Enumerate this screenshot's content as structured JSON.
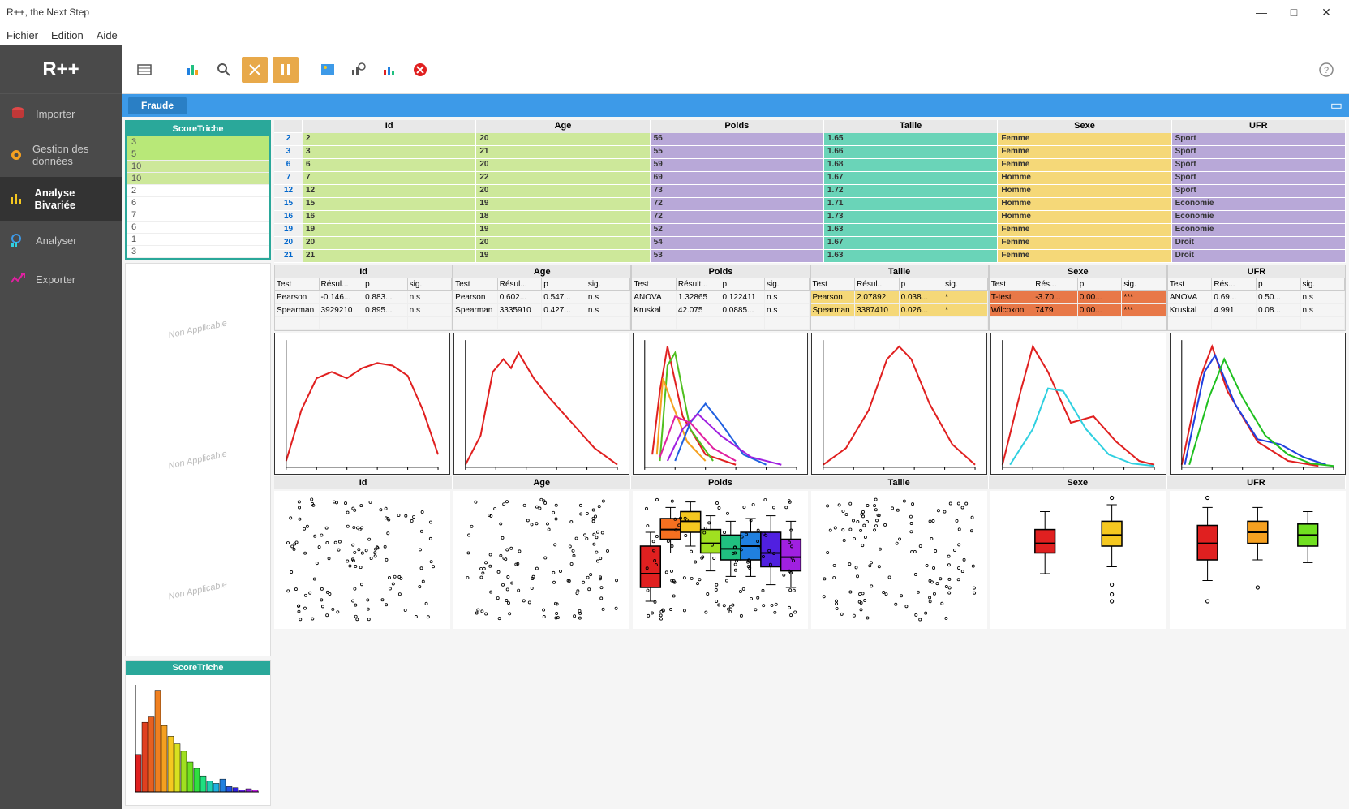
{
  "title": "R++, the Next Step",
  "menu": {
    "file": "Fichier",
    "edit": "Edition",
    "help": "Aide"
  },
  "logo": "R++",
  "nav": {
    "import": "Importer",
    "data": "Gestion des données",
    "bivar": "Analyse Bivariée",
    "analyze": "Analyser",
    "export": "Exporter"
  },
  "tab": "Fraude",
  "scoreHeader": "ScoreTriche",
  "scoreValues": [
    "3",
    "5",
    "10",
    "10",
    "2",
    "6",
    "7",
    "6",
    "1",
    "3"
  ],
  "naText": "Non Applicable",
  "columns": [
    "Id",
    "Age",
    "Poids",
    "Taille",
    "Sexe",
    "UFR"
  ],
  "colColors": [
    "#cde89a",
    "#cde89a",
    "#b8a8d8",
    "#6ad4b8",
    "#f5d878",
    "#b8a8d8"
  ],
  "rowIds": [
    "2",
    "3",
    "6",
    "7",
    "12",
    "15",
    "16",
    "19",
    "20",
    "21"
  ],
  "rows": [
    [
      "2",
      "20",
      "56",
      "1.65",
      "Femme",
      "Sport"
    ],
    [
      "3",
      "21",
      "55",
      "1.66",
      "Femme",
      "Sport"
    ],
    [
      "6",
      "20",
      "59",
      "1.68",
      "Femme",
      "Sport"
    ],
    [
      "7",
      "22",
      "69",
      "1.67",
      "Homme",
      "Sport"
    ],
    [
      "12",
      "20",
      "73",
      "1.72",
      "Homme",
      "Sport"
    ],
    [
      "15",
      "19",
      "72",
      "1.71",
      "Homme",
      "Economie"
    ],
    [
      "16",
      "18",
      "72",
      "1.73",
      "Homme",
      "Economie"
    ],
    [
      "19",
      "19",
      "52",
      "1.63",
      "Femme",
      "Economie"
    ],
    [
      "20",
      "20",
      "54",
      "1.67",
      "Femme",
      "Droit"
    ],
    [
      "21",
      "19",
      "53",
      "1.63",
      "Femme",
      "Droit"
    ]
  ],
  "statCols": [
    {
      "name": "Id",
      "sub": [
        "Test",
        "Résul...",
        "p",
        "sig."
      ],
      "rows": [
        {
          "cells": [
            "Pearson",
            "-0.146...",
            "0.883...",
            "n.s"
          ],
          "bg": null
        },
        {
          "cells": [
            "Spearman",
            "3929210",
            "0.895...",
            "n.s"
          ],
          "bg": null
        }
      ]
    },
    {
      "name": "Age",
      "sub": [
        "Test",
        "Résul...",
        "p",
        "sig."
      ],
      "rows": [
        {
          "cells": [
            "Pearson",
            "0.602...",
            "0.547...",
            "n.s"
          ],
          "bg": null
        },
        {
          "cells": [
            "Spearman",
            "3335910",
            "0.427...",
            "n.s"
          ],
          "bg": null
        }
      ]
    },
    {
      "name": "Poids",
      "sub": [
        "Test",
        "Résult...",
        "p",
        "sig."
      ],
      "rows": [
        {
          "cells": [
            "ANOVA",
            "1.32865",
            "0.122411",
            "n.s"
          ],
          "bg": null
        },
        {
          "cells": [
            "Kruskal",
            "42.075",
            "0.0885...",
            "n.s"
          ],
          "bg": null
        }
      ]
    },
    {
      "name": "Taille",
      "sub": [
        "Test",
        "Résul...",
        "p",
        "sig."
      ],
      "rows": [
        {
          "cells": [
            "Pearson",
            "2.07892",
            "0.038...",
            "*"
          ],
          "bg": "#f5d878"
        },
        {
          "cells": [
            "Spearman",
            "3387410",
            "0.026...",
            "*"
          ],
          "bg": "#f5d878"
        }
      ]
    },
    {
      "name": "Sexe",
      "sub": [
        "Test",
        "Rés...",
        "p",
        "sig."
      ],
      "rows": [
        {
          "cells": [
            "T-test",
            "-3.70...",
            "0.00...",
            "***"
          ],
          "bg": "#e87848"
        },
        {
          "cells": [
            "Wilcoxon",
            "7479",
            "0.00...",
            "***"
          ],
          "bg": "#e87848"
        }
      ]
    },
    {
      "name": "UFR",
      "sub": [
        "Test",
        "Rés...",
        "p",
        "sig."
      ],
      "rows": [
        {
          "cells": [
            "ANOVA",
            "0.69...",
            "0.50...",
            "n.s"
          ],
          "bg": null
        },
        {
          "cells": [
            "Kruskal",
            "4.991",
            "0.08...",
            "n.s"
          ],
          "bg": null
        }
      ]
    }
  ],
  "density": {
    "id": {
      "curves": [
        {
          "color": "#e02020",
          "points": [
            [
              0,
              0.05
            ],
            [
              0.1,
              0.45
            ],
            [
              0.2,
              0.7
            ],
            [
              0.3,
              0.75
            ],
            [
              0.4,
              0.7
            ],
            [
              0.5,
              0.78
            ],
            [
              0.6,
              0.82
            ],
            [
              0.7,
              0.8
            ],
            [
              0.8,
              0.72
            ],
            [
              0.9,
              0.45
            ],
            [
              1,
              0.1
            ]
          ]
        }
      ]
    },
    "age": {
      "curves": [
        {
          "color": "#e02020",
          "points": [
            [
              0,
              0.02
            ],
            [
              0.1,
              0.25
            ],
            [
              0.18,
              0.75
            ],
            [
              0.25,
              0.85
            ],
            [
              0.3,
              0.78
            ],
            [
              0.35,
              0.9
            ],
            [
              0.45,
              0.7
            ],
            [
              0.55,
              0.55
            ],
            [
              0.7,
              0.35
            ],
            [
              0.85,
              0.15
            ],
            [
              1,
              0.02
            ]
          ]
        }
      ]
    },
    "poids": {
      "curves": [
        {
          "color": "#e02020",
          "points": [
            [
              0.05,
              0.1
            ],
            [
              0.1,
              0.6
            ],
            [
              0.15,
              0.95
            ],
            [
              0.25,
              0.4
            ],
            [
              0.4,
              0.1
            ],
            [
              0.6,
              0.02
            ]
          ]
        },
        {
          "color": "#50c020",
          "points": [
            [
              0.1,
              0.05
            ],
            [
              0.15,
              0.8
            ],
            [
              0.2,
              0.9
            ],
            [
              0.3,
              0.3
            ],
            [
              0.45,
              0.05
            ]
          ]
        },
        {
          "color": "#f5a020",
          "points": [
            [
              0.08,
              0.1
            ],
            [
              0.12,
              0.7
            ],
            [
              0.18,
              0.5
            ],
            [
              0.28,
              0.2
            ],
            [
              0.4,
              0.05
            ]
          ]
        },
        {
          "color": "#2060e0",
          "points": [
            [
              0.2,
              0.05
            ],
            [
              0.3,
              0.35
            ],
            [
              0.4,
              0.5
            ],
            [
              0.5,
              0.35
            ],
            [
              0.65,
              0.1
            ],
            [
              0.8,
              0.02
            ]
          ]
        },
        {
          "color": "#a020e0",
          "points": [
            [
              0.15,
              0.05
            ],
            [
              0.25,
              0.3
            ],
            [
              0.35,
              0.42
            ],
            [
              0.5,
              0.25
            ],
            [
              0.7,
              0.08
            ],
            [
              0.9,
              0.02
            ]
          ]
        },
        {
          "color": "#e020a0",
          "points": [
            [
              0.1,
              0.08
            ],
            [
              0.2,
              0.4
            ],
            [
              0.3,
              0.35
            ],
            [
              0.45,
              0.15
            ],
            [
              0.6,
              0.05
            ]
          ]
        }
      ]
    },
    "taille": {
      "curves": [
        {
          "color": "#e02020",
          "points": [
            [
              0,
              0.02
            ],
            [
              0.15,
              0.15
            ],
            [
              0.3,
              0.45
            ],
            [
              0.42,
              0.85
            ],
            [
              0.5,
              0.95
            ],
            [
              0.58,
              0.85
            ],
            [
              0.7,
              0.5
            ],
            [
              0.85,
              0.18
            ],
            [
              1,
              0.02
            ]
          ]
        }
      ]
    },
    "sexe": {
      "curves": [
        {
          "color": "#e02020",
          "points": [
            [
              0,
              0.02
            ],
            [
              0.12,
              0.6
            ],
            [
              0.2,
              0.95
            ],
            [
              0.3,
              0.75
            ],
            [
              0.45,
              0.35
            ],
            [
              0.6,
              0.4
            ],
            [
              0.75,
              0.2
            ],
            [
              0.9,
              0.05
            ],
            [
              1,
              0.02
            ]
          ]
        },
        {
          "color": "#30d0e0",
          "points": [
            [
              0.05,
              0.02
            ],
            [
              0.2,
              0.3
            ],
            [
              0.3,
              0.62
            ],
            [
              0.4,
              0.6
            ],
            [
              0.55,
              0.3
            ],
            [
              0.7,
              0.1
            ],
            [
              0.85,
              0.03
            ],
            [
              1,
              0.01
            ]
          ]
        }
      ]
    },
    "ufr": {
      "curves": [
        {
          "color": "#e02020",
          "points": [
            [
              0,
              0.02
            ],
            [
              0.12,
              0.7
            ],
            [
              0.2,
              0.95
            ],
            [
              0.3,
              0.6
            ],
            [
              0.5,
              0.2
            ],
            [
              0.7,
              0.05
            ],
            [
              0.9,
              0.01
            ]
          ]
        },
        {
          "color": "#2040e0",
          "points": [
            [
              0.02,
              0.02
            ],
            [
              0.15,
              0.75
            ],
            [
              0.22,
              0.88
            ],
            [
              0.35,
              0.5
            ],
            [
              0.5,
              0.22
            ],
            [
              0.65,
              0.18
            ],
            [
              0.8,
              0.08
            ],
            [
              0.95,
              0.02
            ]
          ]
        },
        {
          "color": "#20c020",
          "points": [
            [
              0.05,
              0.02
            ],
            [
              0.18,
              0.55
            ],
            [
              0.28,
              0.85
            ],
            [
              0.4,
              0.55
            ],
            [
              0.55,
              0.25
            ],
            [
              0.7,
              0.1
            ],
            [
              0.85,
              0.03
            ],
            [
              1,
              0.01
            ]
          ]
        }
      ]
    }
  },
  "boxplots": {
    "sexe": [
      {
        "color": "#e02020",
        "x": 0.3,
        "q1": 0.55,
        "med": 0.62,
        "q3": 0.72,
        "wlow": 0.4,
        "whigh": 0.85,
        "out": []
      },
      {
        "color": "#f5c820",
        "x": 0.7,
        "q1": 0.6,
        "med": 0.68,
        "q3": 0.78,
        "wlow": 0.45,
        "whigh": 0.9,
        "out": [
          0.2,
          0.25,
          0.32,
          0.95
        ]
      }
    ],
    "ufr": [
      {
        "color": "#e02020",
        "x": 0.2,
        "q1": 0.5,
        "med": 0.62,
        "q3": 0.75,
        "wlow": 0.35,
        "whigh": 0.88,
        "out": [
          0.2,
          0.95
        ]
      },
      {
        "color": "#f5a020",
        "x": 0.5,
        "q1": 0.62,
        "med": 0.7,
        "q3": 0.78,
        "wlow": 0.5,
        "whigh": 0.88,
        "out": [
          0.3
        ]
      },
      {
        "color": "#70e020",
        "x": 0.8,
        "q1": 0.6,
        "med": 0.68,
        "q3": 0.76,
        "wlow": 0.48,
        "whigh": 0.85,
        "out": []
      }
    ],
    "poids": [
      {
        "color": "#e02020",
        "x": 0.08,
        "q1": 0.3,
        "med": 0.4,
        "q3": 0.6,
        "wlow": 0.2,
        "whigh": 0.7
      },
      {
        "color": "#f57020",
        "x": 0.2,
        "q1": 0.65,
        "med": 0.72,
        "q3": 0.8,
        "wlow": 0.55,
        "whigh": 0.88
      },
      {
        "color": "#f5c820",
        "x": 0.32,
        "q1": 0.7,
        "med": 0.78,
        "q3": 0.85,
        "wlow": 0.6,
        "whigh": 0.92
      },
      {
        "color": "#a0e020",
        "x": 0.44,
        "q1": 0.55,
        "med": 0.62,
        "q3": 0.72,
        "wlow": 0.42,
        "whigh": 0.82
      },
      {
        "color": "#20c080",
        "x": 0.56,
        "q1": 0.5,
        "med": 0.58,
        "q3": 0.68,
        "wlow": 0.38,
        "whigh": 0.78
      },
      {
        "color": "#2080e0",
        "x": 0.68,
        "q1": 0.5,
        "med": 0.6,
        "q3": 0.7,
        "wlow": 0.38,
        "whigh": 0.8
      },
      {
        "color": "#5020e0",
        "x": 0.8,
        "q1": 0.45,
        "med": 0.55,
        "q3": 0.7,
        "wlow": 0.32,
        "whigh": 0.82
      },
      {
        "color": "#a020e0",
        "x": 0.92,
        "q1": 0.42,
        "med": 0.52,
        "q3": 0.65,
        "wlow": 0.3,
        "whigh": 0.78
      }
    ]
  },
  "histogram": {
    "bars": [
      {
        "h": 0.35,
        "c": "#e02020"
      },
      {
        "h": 0.65,
        "c": "#e04020"
      },
      {
        "h": 0.7,
        "c": "#e86020"
      },
      {
        "h": 0.95,
        "c": "#f08020"
      },
      {
        "h": 0.62,
        "c": "#f5a020"
      },
      {
        "h": 0.52,
        "c": "#f5c820"
      },
      {
        "h": 0.45,
        "c": "#d8e020"
      },
      {
        "h": 0.38,
        "c": "#a0e020"
      },
      {
        "h": 0.28,
        "c": "#70e020"
      },
      {
        "h": 0.22,
        "c": "#30e040"
      },
      {
        "h": 0.15,
        "c": "#20e080"
      },
      {
        "h": 0.1,
        "c": "#20d0b0"
      },
      {
        "h": 0.08,
        "c": "#20b0e0"
      },
      {
        "h": 0.12,
        "c": "#2080e0"
      },
      {
        "h": 0.05,
        "c": "#2050e0"
      },
      {
        "h": 0.04,
        "c": "#3020e0"
      },
      {
        "h": 0.02,
        "c": "#6020e0"
      },
      {
        "h": 0.03,
        "c": "#9020e0"
      },
      {
        "h": 0.02,
        "c": "#c020e0"
      }
    ]
  }
}
